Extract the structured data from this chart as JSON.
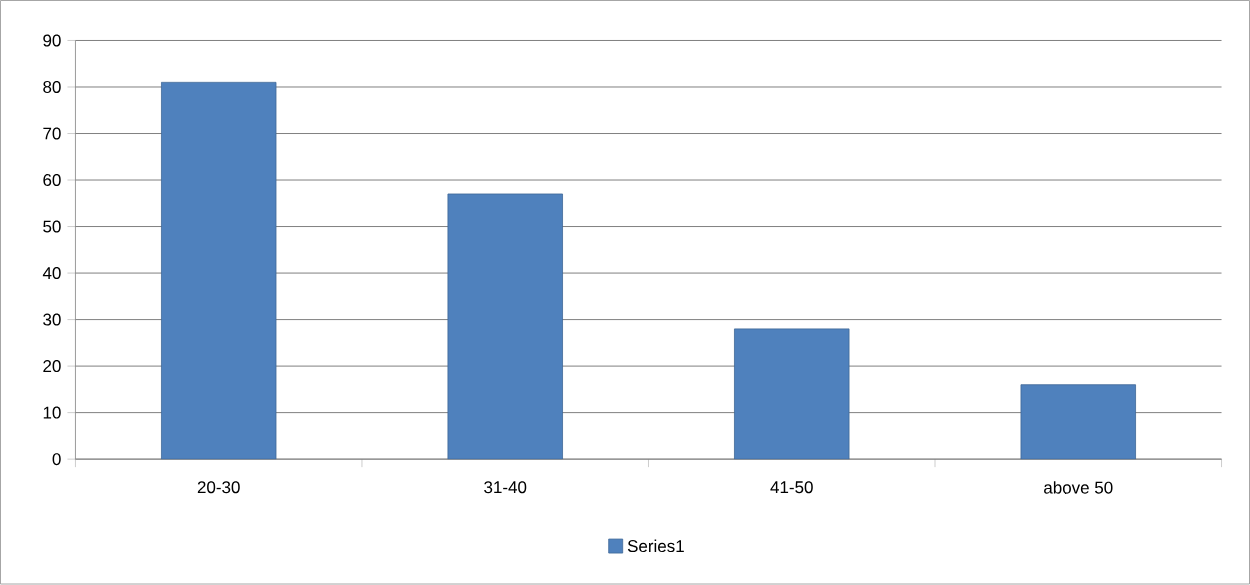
{
  "chart_data": {
    "type": "bar",
    "categories": [
      "20-30",
      "31-40",
      "41-50",
      "above 50"
    ],
    "series": [
      {
        "name": "Series1",
        "color": "#4f81bd",
        "values": [
          81,
          57,
          28,
          16
        ]
      }
    ],
    "ylim": [
      0,
      90
    ],
    "yticks": [
      0,
      10,
      20,
      30,
      40,
      50,
      60,
      70,
      80,
      90
    ],
    "grid": "y",
    "legend": "bottom"
  }
}
